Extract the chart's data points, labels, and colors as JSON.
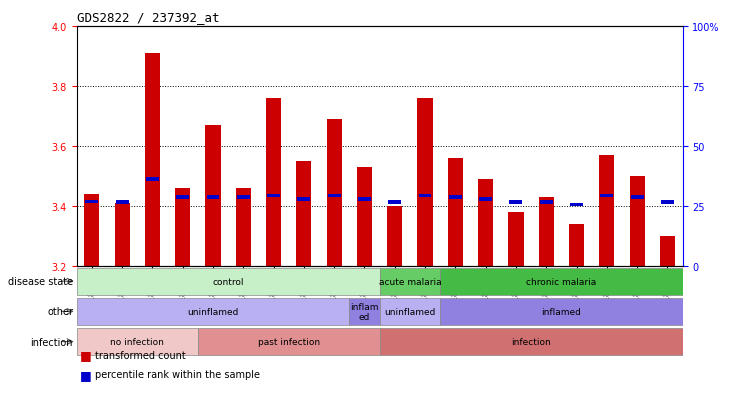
{
  "title": "GDS2822 / 237392_at",
  "samples": [
    "GSM183605",
    "GSM183606",
    "GSM183607",
    "GSM183608",
    "GSM183609",
    "GSM183620",
    "GSM183621",
    "GSM183622",
    "GSM183624",
    "GSM183623",
    "GSM183611",
    "GSM183613",
    "GSM183618",
    "GSM183610",
    "GSM183612",
    "GSM183614",
    "GSM183615",
    "GSM183616",
    "GSM183617",
    "GSM183619"
  ],
  "bar_values": [
    3.44,
    3.41,
    3.91,
    3.46,
    3.67,
    3.46,
    3.76,
    3.55,
    3.69,
    3.53,
    3.4,
    3.76,
    3.56,
    3.49,
    3.38,
    3.43,
    3.34,
    3.57,
    3.5,
    3.3
  ],
  "percentile_values": [
    3.415,
    3.413,
    3.49,
    3.43,
    3.43,
    3.43,
    3.435,
    3.422,
    3.435,
    3.422,
    3.413,
    3.435,
    3.43,
    3.422,
    3.413,
    3.413,
    3.405,
    3.435,
    3.43,
    3.413
  ],
  "ymin": 3.2,
  "ymax": 4.0,
  "yticks": [
    3.2,
    3.4,
    3.6,
    3.8,
    4.0
  ],
  "right_yticks": [
    0,
    25,
    50,
    75,
    100
  ],
  "bar_color": "#cc0000",
  "percentile_color": "#0000cc",
  "bar_width": 0.5,
  "annotation_rows": [
    {
      "label": "disease state",
      "segments": [
        {
          "text": "control",
          "start": 0,
          "end": 9,
          "color": "#c8f0c8"
        },
        {
          "text": "acute malaria",
          "start": 10,
          "end": 11,
          "color": "#66cc66"
        },
        {
          "text": "chronic malaria",
          "start": 12,
          "end": 19,
          "color": "#44bb44"
        }
      ]
    },
    {
      "label": "other",
      "segments": [
        {
          "text": "uninflamed",
          "start": 0,
          "end": 8,
          "color": "#b8b0f0"
        },
        {
          "text": "inflam\ned",
          "start": 9,
          "end": 9,
          "color": "#9080e0"
        },
        {
          "text": "uninflamed",
          "start": 10,
          "end": 11,
          "color": "#b8b0f0"
        },
        {
          "text": "inflamed",
          "start": 12,
          "end": 19,
          "color": "#9080e0"
        }
      ]
    },
    {
      "label": "infection",
      "segments": [
        {
          "text": "no infection",
          "start": 0,
          "end": 3,
          "color": "#f0c8c8"
        },
        {
          "text": "past infection",
          "start": 4,
          "end": 9,
          "color": "#e09090"
        },
        {
          "text": "infection",
          "start": 10,
          "end": 19,
          "color": "#d07070"
        }
      ]
    }
  ],
  "legend": [
    {
      "color": "#cc0000",
      "label": "transformed count"
    },
    {
      "color": "#0000cc",
      "label": "percentile rank within the sample"
    }
  ]
}
